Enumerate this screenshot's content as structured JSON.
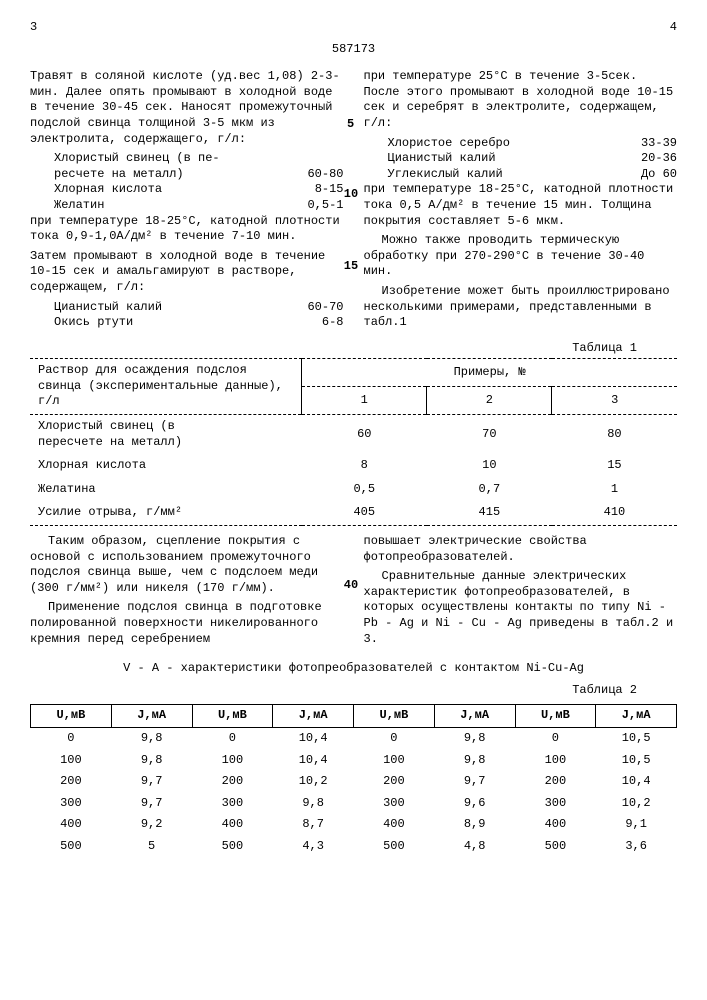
{
  "page_left": "3",
  "page_right": "4",
  "doc_number": "587173",
  "line_marks": {
    "m5": "5",
    "m10": "10",
    "m15": "15",
    "m40": "40"
  },
  "left": {
    "p1": "Травят в соляной кислоте (уд.вес 1,08) 2-3- мин. Далее опять промывают в холодной воде в течение 30-45 сек. Наносят промежуточный подслой свинца толщиной 3-5 мкм из электролита, содержащего, г/л:",
    "ing1a": "Хлористый свинец (в пе-",
    "ing1b": "ресчете на металл)",
    "ing1v": "60-80",
    "ing2": "Хлорная кислота",
    "ing2v": "8-15",
    "ing3": "Желатин",
    "ing3v": "0,5-1",
    "p2": "при температуре 18-25°С, катодной плотности тока 0,9-1,0А/дм² в течение 7-10 мин.",
    "p3": "Затем промывают в холодной воде в течение 10-15 сек и амальгамируют в растворе, содержащем, г/л:",
    "ing4": "Цианистый калий",
    "ing4v": "60-70",
    "ing5": "Окись ртути",
    "ing5v": "6-8"
  },
  "right": {
    "p1": "при температуре 25°С в течение 3-5сек. После этого промывают в холодной воде 10-15 сек и серебрят в электролите, содержащем, г/л:",
    "ing1": "Хлористое серебро",
    "ing1v": "33-39",
    "ing2": "Цианистый калий",
    "ing2v": "20-36",
    "ing3": "Углекислый калий",
    "ing3v": "До 60",
    "p2": "при температуре 18-25°С, катодной плотности тока 0,5 А/дм² в течение 15 мин. Толщина покрытия составляет 5-6 мкм.",
    "p3": "Можно также проводить термическую обработку при 270-290°С в течение 30-40 мин.",
    "p4": "Изобретение может быть проиллюстрировано несколькими примерами, представленными в табл.1"
  },
  "table1": {
    "label": "Таблица 1",
    "header_left": "Раствор для осаждения подслоя свинца (экспериментальные данные), г/л",
    "header_right": "Примеры, №",
    "cols": [
      "1",
      "2",
      "3"
    ],
    "rows": [
      {
        "name": [
          "Хлористый свинец (в",
          "пересчете на металл)"
        ],
        "v": [
          "60",
          "70",
          "80"
        ]
      },
      {
        "name": [
          "Хлорная кислота"
        ],
        "v": [
          "8",
          "10",
          "15"
        ]
      },
      {
        "name": [
          "Желатина"
        ],
        "v": [
          "0,5",
          "0,7",
          "1"
        ]
      },
      {
        "name": [
          "Усилие отрыва, г/мм²"
        ],
        "v": [
          "405",
          "415",
          "410"
        ]
      }
    ]
  },
  "mid_left": {
    "p1": "Таким образом, сцепление покрытия с основой с использованием промежуточного подслоя свинца выше, чем с подслоем меди (300 г/мм²) или никеля (170 г/мм).",
    "p2": "Применение подслоя свинца в подготовке полированной поверхности никелированного кремния перед серебрением"
  },
  "mid_right": {
    "p1": "повышает электрические свойства фотопреобразователей.",
    "p2": "Сравнительные данные электрических характеристик фотопреобразователей, в которых осуществлены контакты по типу Ni - Pb - Ag и Ni - Cu - Ag приведены в табл.2 и 3."
  },
  "table2": {
    "caption": "V - A - характеристики фотопреобразователей с контактом Ni-Cu-Ag",
    "label": "Таблица 2",
    "headers": [
      "U,мВ",
      "J,мА",
      "U,мВ",
      "J,мА",
      "U,мВ",
      "J,мА",
      "U,мВ",
      "J,мА"
    ],
    "rows": [
      [
        "0",
        "9,8",
        "0",
        "10,4",
        "0",
        "9,8",
        "0",
        "10,5"
      ],
      [
        "100",
        "9,8",
        "100",
        "10,4",
        "100",
        "9,8",
        "100",
        "10,5"
      ],
      [
        "200",
        "9,7",
        "200",
        "10,2",
        "200",
        "9,7",
        "200",
        "10,4"
      ],
      [
        "300",
        "9,7",
        "300",
        "9,8",
        "300",
        "9,6",
        "300",
        "10,2"
      ],
      [
        "400",
        "9,2",
        "400",
        "8,7",
        "400",
        "8,9",
        "400",
        "9,1"
      ],
      [
        "500",
        "5",
        "500",
        "4,3",
        "500",
        "4,8",
        "500",
        "3,6"
      ]
    ]
  }
}
